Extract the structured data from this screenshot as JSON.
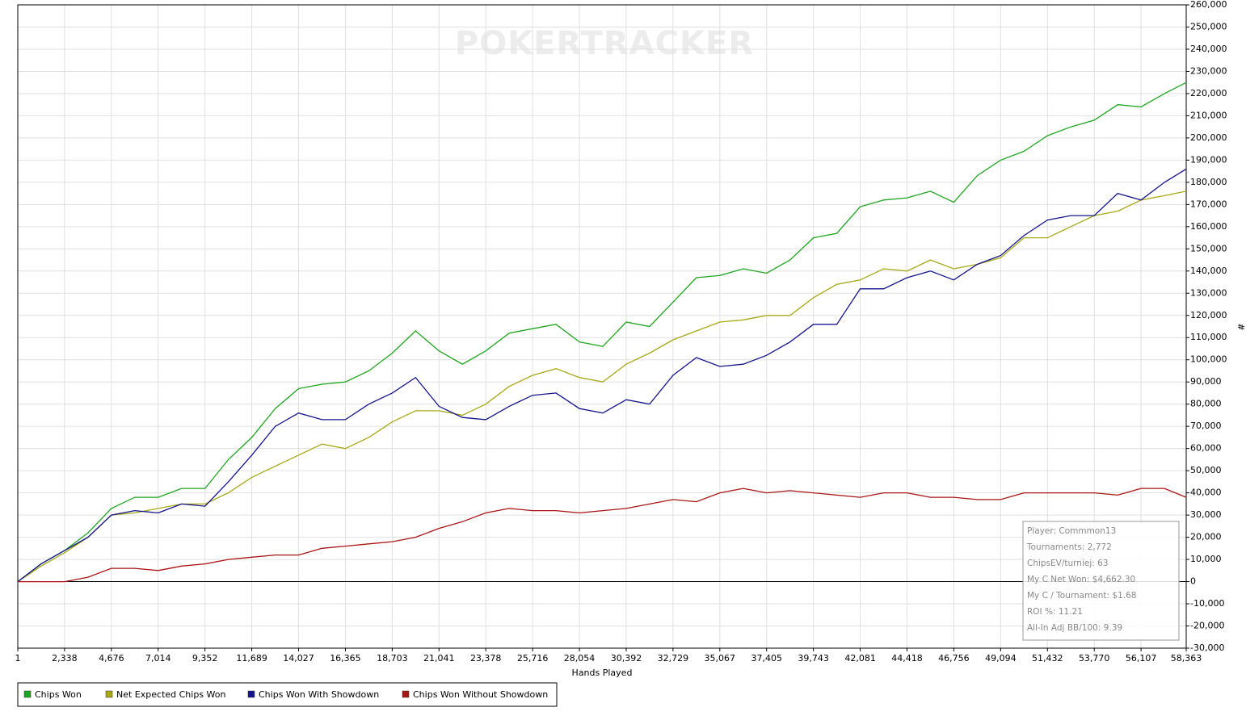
{
  "chart_data": {
    "type": "line",
    "watermark": "POKERTRACKER",
    "x_label": "Hands Played",
    "y_label": "#",
    "grid": true,
    "legend": "bottom",
    "xlim": [
      1,
      58363
    ],
    "ylim": [
      -30000,
      260000
    ],
    "xticks": [
      1,
      {
        "value": 2338,
        "label": "2,338"
      },
      {
        "value": 4676,
        "label": "4,676"
      },
      {
        "value": 7014,
        "label": "7,014"
      },
      {
        "value": 9352,
        "label": "9,352"
      },
      {
        "value": 11689,
        "label": "11,689"
      },
      {
        "value": 14027,
        "label": "14,027"
      },
      {
        "value": 16365,
        "label": "16,365"
      },
      {
        "value": 18703,
        "label": "18,703"
      },
      {
        "value": 21041,
        "label": "21,041"
      },
      {
        "value": 23378,
        "label": "23,378"
      },
      {
        "value": 25716,
        "label": "25,716"
      },
      {
        "value": 28054,
        "label": "28,054"
      },
      {
        "value": 30392,
        "label": "30,392"
      },
      {
        "value": 32729,
        "label": "32,729"
      },
      {
        "value": 35067,
        "label": "35,067"
      },
      {
        "value": 37405,
        "label": "37,405"
      },
      {
        "value": 39743,
        "label": "39,743"
      },
      {
        "value": 42081,
        "label": "42,081"
      },
      {
        "value": 44418,
        "label": "44,418"
      },
      {
        "value": 46756,
        "label": "46,756"
      },
      {
        "value": 49094,
        "label": "49,094"
      },
      {
        "value": 51432,
        "label": "51,432"
      },
      {
        "value": 53770,
        "label": "53,770"
      },
      {
        "value": 56107,
        "label": "56,107"
      },
      {
        "value": 58363,
        "label": "58,363"
      }
    ],
    "yticks": [
      {
        "value": -30000,
        "label": "-30,000"
      },
      {
        "value": -20000,
        "label": "-20,000"
      },
      {
        "value": -10000,
        "label": "-10,000"
      },
      0,
      {
        "value": 10000,
        "label": "10,000"
      },
      {
        "value": 20000,
        "label": "20,000"
      },
      {
        "value": 30000,
        "label": "30,000"
      },
      {
        "value": 40000,
        "label": "40,000"
      },
      {
        "value": 50000,
        "label": "50,000"
      },
      {
        "value": 60000,
        "label": "60,000"
      },
      {
        "value": 70000,
        "label": "70,000"
      },
      {
        "value": 80000,
        "label": "80,000"
      },
      {
        "value": 90000,
        "label": "90,000"
      },
      {
        "value": 100000,
        "label": "100,000"
      },
      {
        "value": 110000,
        "label": "110,000"
      },
      {
        "value": 120000,
        "label": "120,000"
      },
      {
        "value": 130000,
        "label": "130,000"
      },
      {
        "value": 140000,
        "label": "140,000"
      },
      {
        "value": 150000,
        "label": "150,000"
      },
      {
        "value": 160000,
        "label": "160,000"
      },
      {
        "value": 170000,
        "label": "170,000"
      },
      {
        "value": 180000,
        "label": "180,000"
      },
      {
        "value": 190000,
        "label": "190,000"
      },
      {
        "value": 200000,
        "label": "200,000"
      },
      {
        "value": 210000,
        "label": "210,000"
      },
      {
        "value": 220000,
        "label": "220,000"
      },
      {
        "value": 230000,
        "label": "230,000"
      },
      {
        "value": 240000,
        "label": "240,000"
      },
      {
        "value": 250000,
        "label": "250,000"
      },
      {
        "value": 260000,
        "label": "260,000"
      }
    ],
    "x": [
      1,
      1169,
      2338,
      3507,
      4676,
      5845,
      7014,
      8183,
      9352,
      10521,
      11689,
      12858,
      14027,
      15196,
      16365,
      17534,
      18703,
      19872,
      21041,
      22210,
      23378,
      24547,
      25716,
      26885,
      28054,
      29223,
      30392,
      31561,
      32729,
      33898,
      35067,
      36236,
      37405,
      38574,
      39743,
      40912,
      42081,
      43250,
      44418,
      45587,
      46756,
      47925,
      49094,
      50263,
      51432,
      52601,
      53770,
      54939,
      56107,
      57276,
      58363
    ],
    "series": [
      {
        "name": "Chips Won",
        "color": "#1fa51f",
        "values": [
          0,
          8000,
          14000,
          22000,
          33000,
          38000,
          38000,
          42000,
          42000,
          55000,
          65000,
          78000,
          87000,
          89000,
          90000,
          95000,
          103000,
          113000,
          104000,
          98000,
          104000,
          112000,
          114000,
          116000,
          108000,
          106000,
          117000,
          115000,
          126000,
          137000,
          138000,
          141000,
          139000,
          145000,
          155000,
          157000,
          169000,
          172000,
          173000,
          176000,
          171000,
          183000,
          190000,
          194000,
          201000,
          205000,
          208000,
          215000,
          214000,
          220000,
          225000
        ]
      },
      {
        "name": "Net Expected Chips Won",
        "color": "#a8a818",
        "values": [
          0,
          7000,
          13000,
          20000,
          30000,
          31000,
          33000,
          35000,
          35000,
          40000,
          47000,
          52000,
          57000,
          62000,
          60000,
          65000,
          72000,
          77000,
          77000,
          75000,
          80000,
          88000,
          93000,
          96000,
          92000,
          90000,
          98000,
          103000,
          109000,
          113000,
          117000,
          118000,
          120000,
          120000,
          128000,
          134000,
          136000,
          141000,
          140000,
          145000,
          141000,
          143000,
          146000,
          155000,
          155000,
          160000,
          165000,
          167000,
          172000,
          174000,
          176000
        ]
      },
      {
        "name": "Chips Won With Showdown",
        "color": "#14148c",
        "values": [
          0,
          8000,
          14000,
          20000,
          30000,
          32000,
          31000,
          35000,
          34000,
          45000,
          57000,
          70000,
          76000,
          73000,
          73000,
          80000,
          85000,
          92000,
          79000,
          74000,
          73000,
          79000,
          84000,
          85000,
          78000,
          76000,
          82000,
          80000,
          93000,
          101000,
          97000,
          98000,
          102000,
          108000,
          116000,
          116000,
          132000,
          132000,
          137000,
          140000,
          136000,
          143000,
          147000,
          156000,
          163000,
          165000,
          165000,
          175000,
          172000,
          180000,
          186000
        ]
      },
      {
        "name": "Chips Won Without Showdown",
        "color": "#aa1414",
        "values": [
          0,
          0,
          0,
          2000,
          6000,
          6000,
          5000,
          7000,
          8000,
          10000,
          11000,
          12000,
          12000,
          15000,
          16000,
          17000,
          18000,
          20000,
          24000,
          27000,
          31000,
          33000,
          32000,
          32000,
          31000,
          32000,
          33000,
          35000,
          37000,
          36000,
          40000,
          42000,
          40000,
          41000,
          40000,
          39000,
          38000,
          40000,
          40000,
          38000,
          38000,
          37000,
          37000,
          40000,
          40000,
          40000,
          40000,
          39000,
          42000,
          42000,
          38000
        ]
      }
    ],
    "info_box": [
      "Player: Commmon13",
      "Tournaments: 2,772",
      "ChipsEV/turniej: 63",
      "My C Net Won: $4,662.30",
      "My C / Tournament: $1.68",
      "ROI %: 11.21",
      "All-In Adj BB/100: 9.39"
    ]
  }
}
